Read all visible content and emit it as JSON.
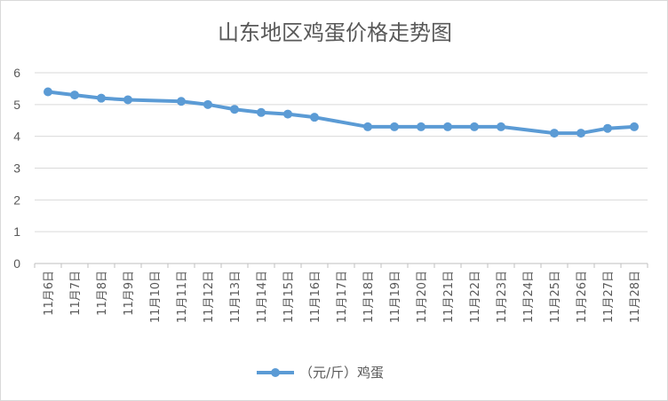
{
  "chart_data": {
    "type": "line",
    "title": "山东地区鸡蛋价格走势图",
    "categories": [
      "11月6日",
      "11月7日",
      "11月8日",
      "11月9日",
      "11月10日",
      "11月11日",
      "11月12日",
      "11月13日",
      "11月14日",
      "11月15日",
      "11月16日",
      "11月17日",
      "11月18日",
      "11月19日",
      "11月20日",
      "11月21日",
      "11月22日",
      "11月23日",
      "11月24日",
      "11月25日",
      "11月26日",
      "11月27日",
      "11月28日"
    ],
    "series": [
      {
        "name": "（元/斤）鸡蛋",
        "color": "#5b9bd5",
        "values": [
          5.4,
          5.3,
          5.2,
          5.15,
          null,
          5.1,
          5.0,
          4.85,
          4.75,
          4.7,
          4.6,
          null,
          4.3,
          4.3,
          4.3,
          4.3,
          4.3,
          4.3,
          null,
          4.1,
          4.1,
          4.25,
          4.3
        ]
      }
    ],
    "ylim": [
      0,
      6
    ],
    "yticks": [
      "0",
      "1",
      "2",
      "3",
      "4",
      "5",
      "6"
    ],
    "grid": true,
    "legend": "bottom"
  }
}
